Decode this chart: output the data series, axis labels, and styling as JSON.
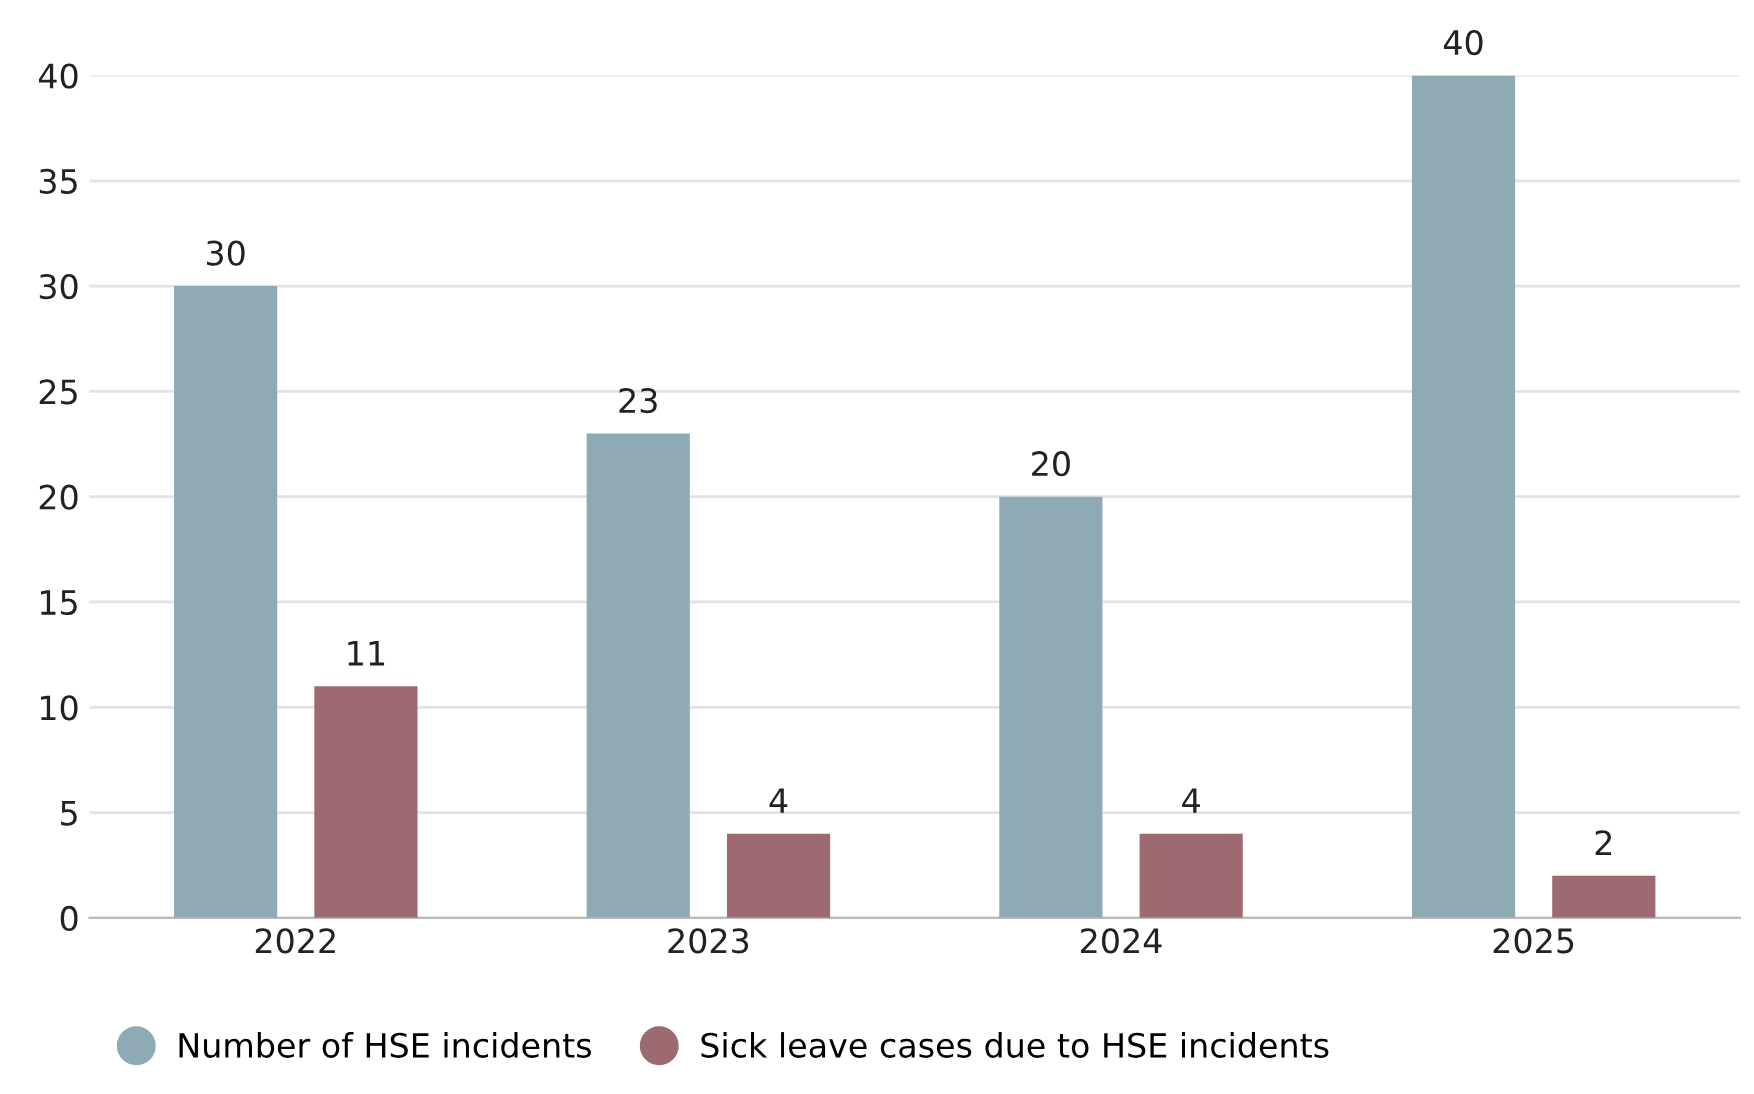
{
  "chart_data": {
    "type": "bar",
    "categories": [
      "2022",
      "2023",
      "2024",
      "2025"
    ],
    "series": [
      {
        "name": "Number of HSE incidents",
        "color": "#8eaab5",
        "values": [
          30,
          23,
          20,
          40
        ]
      },
      {
        "name": "Sick leave cases due to HSE incidents",
        "color": "#9e6a72",
        "values": [
          11,
          4,
          4,
          2
        ]
      }
    ],
    "ylim": [
      0,
      40
    ],
    "yticks": [
      0,
      5,
      10,
      15,
      20,
      25,
      30,
      35,
      40
    ],
    "grid": "y",
    "data_labels": true,
    "legend": "bottom",
    "marker": "circle"
  }
}
